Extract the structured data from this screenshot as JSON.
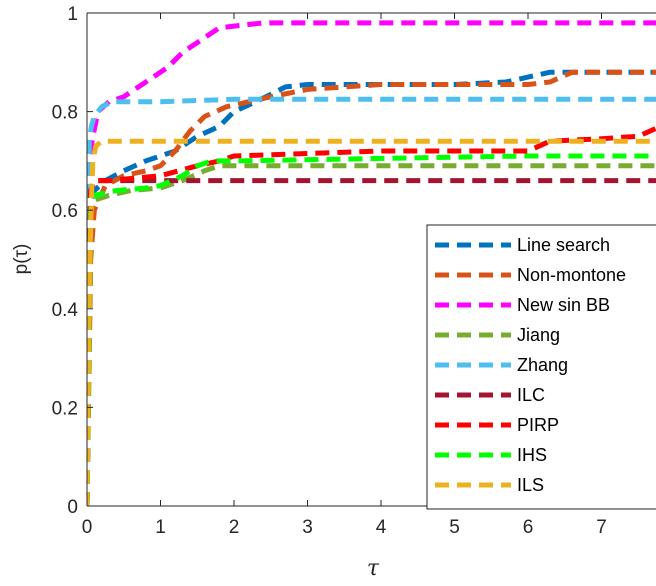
{
  "chart_data": {
    "type": "line",
    "title": "",
    "xlabel": "τ",
    "ylabel": "p(τ)",
    "xlim": [
      0,
      7.8
    ],
    "ylim": [
      0,
      1
    ],
    "xticks": [
      "0",
      "1",
      "2",
      "3",
      "4",
      "5",
      "6",
      "7"
    ],
    "yticks": [
      "0",
      "0.2",
      "0.4",
      "0.6",
      "0.8",
      "1"
    ],
    "grid": false,
    "legend_position": "bottom-right",
    "series": [
      {
        "name": "Line search",
        "color": "#0072BD",
        "x": [
          0,
          0.05,
          0.1,
          0.25,
          0.5,
          0.8,
          1.0,
          1.2,
          1.5,
          1.8,
          2.0,
          2.3,
          2.7,
          3.0,
          4.0,
          5.0,
          5.7,
          6.0,
          6.3,
          7.8
        ],
        "y": [
          0,
          0.62,
          0.64,
          0.66,
          0.68,
          0.7,
          0.71,
          0.72,
          0.75,
          0.77,
          0.8,
          0.82,
          0.85,
          0.855,
          0.855,
          0.855,
          0.86,
          0.87,
          0.88,
          0.88
        ]
      },
      {
        "name": "Non-montone",
        "color": "#D95319",
        "x": [
          0,
          0.05,
          0.1,
          0.25,
          0.5,
          0.8,
          1.0,
          1.2,
          1.4,
          1.6,
          1.9,
          2.2,
          2.5,
          3.0,
          4.0,
          5.0,
          6.0,
          6.3,
          6.6,
          7.8
        ],
        "y": [
          0,
          0.5,
          0.6,
          0.65,
          0.67,
          0.68,
          0.69,
          0.72,
          0.76,
          0.79,
          0.81,
          0.82,
          0.83,
          0.845,
          0.855,
          0.855,
          0.855,
          0.86,
          0.88,
          0.88
        ]
      },
      {
        "name": "New sin BB",
        "color": "#FF00FF",
        "x": [
          0,
          0.03,
          0.08,
          0.15,
          0.3,
          0.5,
          0.7,
          0.9,
          1.1,
          1.3,
          1.6,
          1.8,
          2.1,
          2.4,
          7.8
        ],
        "y": [
          0,
          0.7,
          0.75,
          0.8,
          0.82,
          0.83,
          0.85,
          0.87,
          0.89,
          0.92,
          0.95,
          0.97,
          0.975,
          0.98,
          0.98
        ]
      },
      {
        "name": "Jiang",
        "color": "#77AC30",
        "x": [
          0,
          0.05,
          0.1,
          0.3,
          0.6,
          1.0,
          1.3,
          1.6,
          1.8,
          2.0,
          7.8
        ],
        "y": [
          0,
          0.6,
          0.62,
          0.63,
          0.64,
          0.645,
          0.66,
          0.68,
          0.69,
          0.69,
          0.69
        ]
      },
      {
        "name": "Zhang",
        "color": "#4DBEEE",
        "x": [
          0,
          0.03,
          0.06,
          0.1,
          0.2,
          0.35,
          1.0,
          2.0,
          7.8
        ],
        "y": [
          0,
          0.74,
          0.77,
          0.79,
          0.81,
          0.82,
          0.82,
          0.825,
          0.825
        ]
      },
      {
        "name": "ILC",
        "color": "#A2142F",
        "x": [
          0,
          0.05,
          0.1,
          1.0,
          7.8
        ],
        "y": [
          0,
          0.64,
          0.66,
          0.66,
          0.66
        ]
      },
      {
        "name": "PIRP",
        "color": "#FF0000",
        "x": [
          0,
          0.05,
          0.1,
          0.3,
          1.0,
          1.5,
          1.8,
          2.0,
          3.0,
          4.0,
          5.0,
          6.0,
          6.3,
          7.0,
          7.5,
          7.8
        ],
        "y": [
          0,
          0.64,
          0.66,
          0.66,
          0.67,
          0.69,
          0.7,
          0.71,
          0.715,
          0.72,
          0.72,
          0.72,
          0.74,
          0.745,
          0.75,
          0.77
        ]
      },
      {
        "name": "IHS",
        "color": "#00FF00",
        "x": [
          0,
          0.05,
          0.1,
          0.4,
          0.8,
          1.0,
          1.3,
          1.5,
          1.7,
          2.0,
          4.0,
          6.0,
          7.8
        ],
        "y": [
          0,
          0.6,
          0.63,
          0.64,
          0.645,
          0.65,
          0.67,
          0.69,
          0.7,
          0.7,
          0.705,
          0.71,
          0.71
        ]
      },
      {
        "name": "ILS",
        "color": "#EDB120",
        "x": [
          0,
          0.02,
          0.04,
          0.06,
          0.08,
          0.12,
          0.2,
          7.8
        ],
        "y": [
          0,
          0.3,
          0.5,
          0.62,
          0.7,
          0.73,
          0.74,
          0.74
        ]
      }
    ]
  }
}
